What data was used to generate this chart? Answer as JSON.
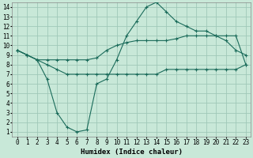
{
  "xlabel": "Humidex (Indice chaleur)",
  "xlim": [
    -0.5,
    23.5
  ],
  "ylim": [
    0.5,
    14.5
  ],
  "yticks": [
    1,
    2,
    3,
    4,
    5,
    6,
    7,
    8,
    9,
    10,
    11,
    12,
    13,
    14
  ],
  "xticks": [
    0,
    1,
    2,
    3,
    4,
    5,
    6,
    7,
    8,
    9,
    10,
    11,
    12,
    13,
    14,
    15,
    16,
    17,
    18,
    19,
    20,
    21,
    22,
    23
  ],
  "bg_color": "#c8e8d8",
  "grid_color": "#a0c8b8",
  "line_color": "#1a6b5a",
  "line1_x": [
    0,
    1,
    2,
    3,
    4,
    5,
    6,
    7,
    8,
    9,
    10,
    11,
    12,
    13,
    14,
    15,
    16,
    17,
    18,
    19,
    20,
    21,
    22,
    23
  ],
  "line1_y": [
    9.5,
    9.0,
    8.5,
    8.5,
    8.5,
    8.5,
    8.5,
    8.5,
    8.7,
    9.5,
    10.0,
    10.3,
    10.5,
    10.5,
    10.5,
    10.5,
    10.7,
    11.0,
    11.0,
    11.0,
    11.0,
    11.0,
    11.0,
    8.0
  ],
  "line2_x": [
    0,
    1,
    2,
    3,
    4,
    5,
    6,
    7,
    8,
    9,
    10,
    11,
    12,
    13,
    14,
    15,
    16,
    17,
    18,
    19,
    20,
    21,
    22,
    23
  ],
  "line2_y": [
    9.5,
    9.0,
    8.5,
    6.5,
    3.0,
    1.5,
    1.0,
    1.2,
    6.0,
    6.5,
    8.5,
    11.0,
    12.5,
    14.0,
    14.5,
    13.5,
    12.5,
    12.0,
    11.5,
    11.5,
    11.0,
    10.5,
    9.5,
    9.0
  ],
  "line3_x": [
    0,
    1,
    2,
    3,
    4,
    5,
    6,
    7,
    8,
    9,
    10,
    11,
    12,
    13,
    14,
    15,
    16,
    17,
    18,
    19,
    20,
    21,
    22,
    23
  ],
  "line3_y": [
    9.5,
    9.0,
    8.5,
    8.0,
    7.5,
    7.0,
    7.0,
    7.0,
    7.0,
    7.0,
    7.0,
    7.0,
    7.0,
    7.0,
    7.0,
    7.5,
    7.5,
    7.5,
    7.5,
    7.5,
    7.5,
    7.5,
    7.5,
    8.0
  ],
  "tick_fontsize": 5.5,
  "xlabel_fontsize": 6.5,
  "linewidth": 0.8,
  "markersize": 3,
  "markeredgewidth": 0.8
}
